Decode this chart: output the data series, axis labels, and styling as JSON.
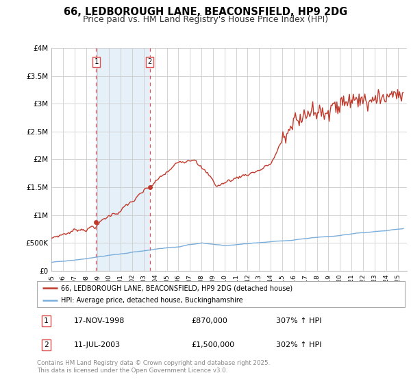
{
  "title": "66, LEDBOROUGH LANE, BEACONSFIELD, HP9 2DG",
  "subtitle": "Price paid vs. HM Land Registry's House Price Index (HPI)",
  "title_fontsize": 10.5,
  "subtitle_fontsize": 9.0,
  "ylim": [
    0,
    4000000
  ],
  "yticks": [
    0,
    500000,
    1000000,
    1500000,
    2000000,
    2500000,
    3000000,
    3500000,
    4000000
  ],
  "ytick_labels": [
    "£0",
    "£500K",
    "£1M",
    "£1.5M",
    "£2M",
    "£2.5M",
    "£3M",
    "£3.5M",
    "£4M"
  ],
  "xlim_start": 1995.0,
  "xlim_end": 2025.8,
  "purchase1_x": 1998.88,
  "purchase1_y": 870000,
  "purchase1_date": "17-NOV-1998",
  "purchase1_price": "£870,000",
  "purchase1_hpi": "307% ↑ HPI",
  "purchase2_x": 2003.53,
  "purchase2_y": 1500000,
  "purchase2_date": "11-JUL-2003",
  "purchase2_price": "£1,500,000",
  "purchase2_hpi": "302% ↑ HPI",
  "line_color_red": "#c0392b",
  "line_color_blue": "#7aaedc",
  "marker_fill": "#c0392b",
  "vline_color": "#e05050",
  "grid_color": "#cccccc",
  "bg_color": "#ffffff",
  "plot_bg": "#ffffff",
  "highlight_color": "#daeaf7",
  "legend_label_red": "66, LEDBOROUGH LANE, BEACONSFIELD, HP9 2DG (detached house)",
  "legend_label_blue": "HPI: Average price, detached house, Buckinghamshire",
  "footer": "Contains HM Land Registry data © Crown copyright and database right 2025.\nThis data is licensed under the Open Government Licence v3.0.",
  "highlight_x1": 1998.88,
  "highlight_x2": 2003.53
}
